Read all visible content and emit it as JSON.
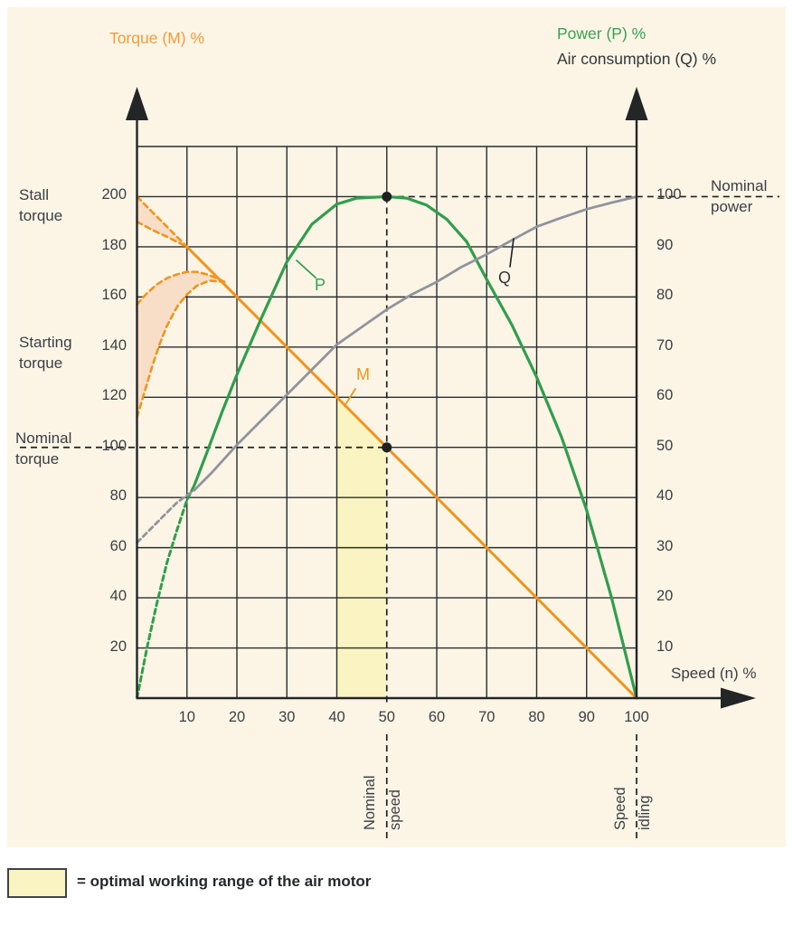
{
  "titles": {
    "torque": "Torque (M) %",
    "power": "Power (P) %",
    "air": "Air consumption (Q) %"
  },
  "annotations": {
    "stall": "Stall torque",
    "starting": "Starting torque",
    "nominal_torque": "Nominal torque",
    "nominal_power": "Nominal power",
    "speed_axis": "Speed (n) %",
    "nominal_speed_word1": "Nominal",
    "nominal_speed_word2": "speed",
    "speed_idling_word1": "Speed",
    "speed_idling_word2": "idling"
  },
  "curve_letters": {
    "p": "P",
    "m": "M",
    "q": "Q"
  },
  "legend": {
    "text": "= optimal working range of the air motor"
  },
  "colors": {
    "panel": "#FCF5E6",
    "grid": "#2A2C2E",
    "axis": "#232527",
    "dash": "#1E2022",
    "orange": "#F0941C",
    "green": "#2F9E4C",
    "gray": "#90949C",
    "region_fill": "#F8DEC6",
    "band": "#FAF4C2"
  },
  "chart_data": {
    "type": "line",
    "title": "Air motor characteristic curves",
    "xlabel": "Speed (n) %",
    "ylabel_left": "Torque (M) %",
    "ylabel_right": "Power (P) % / Air consumption (Q) %",
    "axes": {
      "x": {
        "min": 0,
        "max": 100,
        "ticks": [
          10,
          20,
          30,
          40,
          50,
          60,
          70,
          80,
          90,
          100
        ]
      },
      "left": {
        "min": 0,
        "max": 220,
        "ticks": [
          20,
          40,
          60,
          80,
          100,
          120,
          140,
          160,
          180,
          200
        ]
      },
      "right": {
        "min": 0,
        "max": 110,
        "ticks": [
          10,
          20,
          30,
          40,
          50,
          60,
          70,
          80,
          90,
          100
        ]
      }
    },
    "reference": {
      "nominal_speed": 50,
      "nominal_torque": 100,
      "nominal_power": 100,
      "idling_speed": 100
    },
    "optimal_band": {
      "x_range": [
        40,
        50
      ],
      "polygon": [
        [
          40,
          0
        ],
        [
          40,
          120
        ],
        [
          50,
          100
        ],
        [
          50,
          0
        ]
      ]
    },
    "layers": [
      {
        "name": "stall-region-fill",
        "type": "poly",
        "scale": "left",
        "color": "region_fill",
        "points": [
          [
            0,
            200
          ],
          [
            10,
            180
          ],
          [
            6,
            184
          ],
          [
            3,
            186.8
          ],
          [
            0,
            190
          ]
        ]
      },
      {
        "name": "starting-region-fill",
        "type": "poly",
        "scale": "left",
        "color": "region_fill",
        "points": [
          [
            0,
            157
          ],
          [
            2,
            161.5
          ],
          [
            4,
            165
          ],
          [
            6,
            167.5
          ],
          [
            8,
            169
          ],
          [
            10,
            170
          ],
          [
            12,
            170
          ],
          [
            14,
            169
          ],
          [
            16,
            167.5
          ],
          [
            17.5,
            166
          ],
          [
            14.5,
            166.5
          ],
          [
            12,
            164.5
          ],
          [
            10,
            161
          ],
          [
            8,
            156
          ],
          [
            6,
            148.5
          ],
          [
            4.5,
            141
          ],
          [
            3,
            132
          ],
          [
            1.5,
            122
          ],
          [
            0,
            112
          ]
        ]
      },
      {
        "name": "stall-torque-upper-dashed",
        "type": "line",
        "scale": "left",
        "color": "orange",
        "width": 2.6,
        "dash": "6 4.5",
        "points": [
          [
            0,
            200
          ],
          [
            10,
            180
          ]
        ]
      },
      {
        "name": "stall-torque-lower-dashed",
        "type": "line",
        "scale": "left",
        "color": "orange",
        "width": 2.6,
        "dash": "6 4.5",
        "points": [
          [
            0,
            190
          ],
          [
            3,
            186.8
          ],
          [
            6,
            184
          ],
          [
            10,
            180
          ]
        ]
      },
      {
        "name": "starting-torque-upper-dashed",
        "type": "line",
        "scale": "left",
        "color": "orange",
        "width": 2.6,
        "dash": "6 4.5",
        "points": [
          [
            0,
            157
          ],
          [
            2,
            161.5
          ],
          [
            4,
            165
          ],
          [
            6,
            167.5
          ],
          [
            8,
            169
          ],
          [
            10,
            170
          ],
          [
            12,
            170
          ],
          [
            14,
            169
          ],
          [
            16,
            167.5
          ],
          [
            17.5,
            166
          ]
        ]
      },
      {
        "name": "starting-torque-lower-dashed",
        "type": "line",
        "scale": "left",
        "color": "orange",
        "width": 2.6,
        "dash": "6 4.5",
        "points": [
          [
            0,
            112
          ],
          [
            1.5,
            122
          ],
          [
            3,
            132
          ],
          [
            4.5,
            141
          ],
          [
            6,
            148.5
          ],
          [
            8,
            156
          ],
          [
            10,
            161
          ],
          [
            12,
            164.5
          ],
          [
            14.5,
            166.5
          ],
          [
            17.5,
            166
          ]
        ]
      },
      {
        "name": "torque-curve-M",
        "type": "line",
        "scale": "left",
        "color": "orange",
        "width": 3,
        "points": [
          [
            10,
            180
          ],
          [
            100,
            0
          ]
        ]
      },
      {
        "name": "power-curve-P-dashed",
        "type": "line",
        "scale": "right",
        "color": "green",
        "width": 3,
        "dash": "5.5 4",
        "points": [
          [
            0,
            0
          ],
          [
            2,
            10
          ],
          [
            4,
            19
          ],
          [
            6,
            27
          ],
          [
            8,
            33.5
          ],
          [
            10,
            39.5
          ],
          [
            11.5,
            42.5
          ]
        ]
      },
      {
        "name": "power-curve-P",
        "type": "line",
        "scale": "right",
        "color": "green",
        "width": 3.2,
        "points": [
          [
            11.5,
            42.5
          ],
          [
            14,
            49
          ],
          [
            17,
            57
          ],
          [
            20,
            64.5
          ],
          [
            25,
            76
          ],
          [
            30,
            87
          ],
          [
            35,
            94.5
          ],
          [
            40,
            98.5
          ],
          [
            44,
            99.7
          ],
          [
            50,
            100
          ],
          [
            54,
            99.7
          ],
          [
            58,
            98.3
          ],
          [
            62,
            95.5
          ],
          [
            66,
            91
          ],
          [
            70,
            83.5
          ],
          [
            75,
            74.5
          ],
          [
            80,
            64
          ],
          [
            85,
            52
          ],
          [
            90,
            37.5
          ],
          [
            95,
            20
          ],
          [
            100,
            0
          ]
        ]
      },
      {
        "name": "air-curve-Q-dashed",
        "type": "line",
        "scale": "right",
        "color": "gray",
        "width": 2.8,
        "dash": "5.5 4",
        "points": [
          [
            0,
            31
          ],
          [
            4,
            35
          ],
          [
            8,
            39
          ],
          [
            11.5,
            41.5
          ]
        ]
      },
      {
        "name": "air-curve-Q",
        "type": "line",
        "scale": "right",
        "color": "gray",
        "width": 2.8,
        "points": [
          [
            11.5,
            41.5
          ],
          [
            15,
            45
          ],
          [
            20,
            50.5
          ],
          [
            25,
            55.5
          ],
          [
            30,
            60.5
          ],
          [
            35,
            65.5
          ],
          [
            40,
            70.5
          ],
          [
            45,
            74
          ],
          [
            50,
            77.5
          ],
          [
            55,
            80.5
          ],
          [
            60,
            83
          ],
          [
            65,
            86
          ],
          [
            70,
            88.5
          ],
          [
            75,
            91.3
          ],
          [
            80,
            94
          ],
          [
            85,
            95.8
          ],
          [
            90,
            97.5
          ],
          [
            95,
            98.8
          ],
          [
            100,
            100
          ]
        ]
      },
      {
        "name": "p-label-leader",
        "type": "line",
        "units": "px",
        "color": "green",
        "width": 1.8,
        "points": [
          [
            328,
            288
          ],
          [
            349,
            307
          ]
        ]
      },
      {
        "name": "m-label-leader",
        "type": "line",
        "units": "px",
        "color": "orange",
        "width": 1.8,
        "points": [
          [
            393,
            430
          ],
          [
            381,
            449
          ]
        ]
      },
      {
        "name": "q-label-leader",
        "type": "line",
        "units": "px",
        "color": "dash",
        "width": 1.6,
        "points": [
          [
            568,
            264
          ],
          [
            564,
            295
          ]
        ]
      },
      {
        "name": "nominal-power-point",
        "type": "dot",
        "at": [
          50,
          200
        ]
      },
      {
        "name": "nominal-torque-point",
        "type": "dot",
        "at": [
          50,
          100
        ]
      }
    ]
  }
}
